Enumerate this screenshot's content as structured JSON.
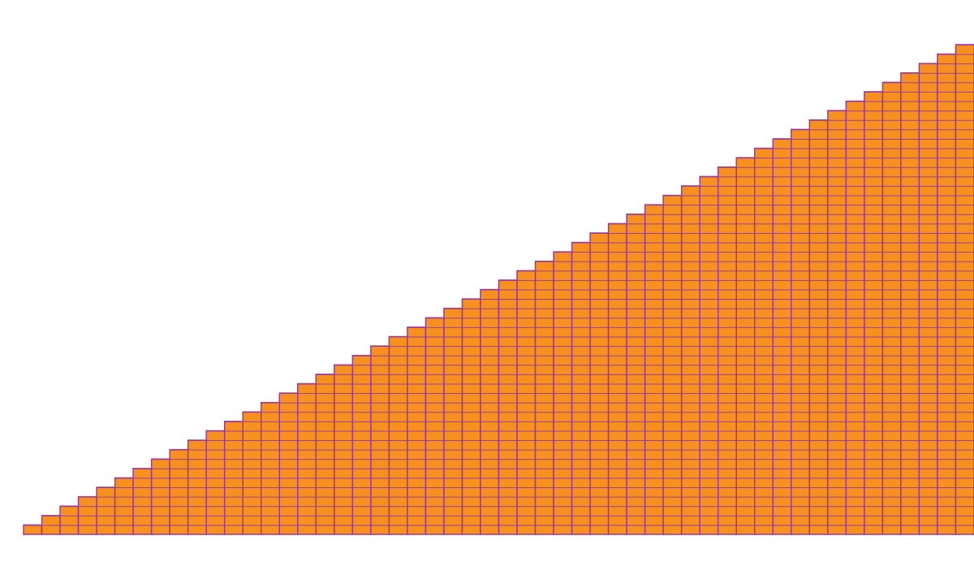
{
  "chart_data": {
    "type": "bar",
    "categories": [
      null,
      null,
      null,
      null,
      null,
      null,
      null,
      null,
      null,
      null,
      null,
      null,
      null,
      null,
      null,
      null,
      null,
      null,
      null,
      null,
      null,
      null,
      null,
      null,
      null,
      null,
      null,
      null,
      null,
      null,
      null,
      null,
      null,
      null,
      null,
      null,
      null,
      null,
      null,
      null,
      null,
      null,
      null,
      null,
      null,
      null,
      null,
      null,
      null,
      null,
      null,
      null
    ],
    "values": [
      1,
      2,
      3,
      4,
      5,
      6,
      7,
      8,
      9,
      10,
      11,
      12,
      13,
      14,
      15,
      16,
      17,
      18,
      19,
      20,
      21,
      22,
      23,
      24,
      25,
      26,
      27,
      28,
      29,
      30,
      31,
      32,
      33,
      34,
      35,
      36,
      37,
      38,
      39,
      40,
      41,
      42,
      43,
      44,
      45,
      46,
      47,
      48,
      49,
      50,
      51,
      52
    ],
    "color": "#f7901e",
    "edge_color": "#9a3b9a",
    "ylim": [
      0,
      52
    ]
  }
}
